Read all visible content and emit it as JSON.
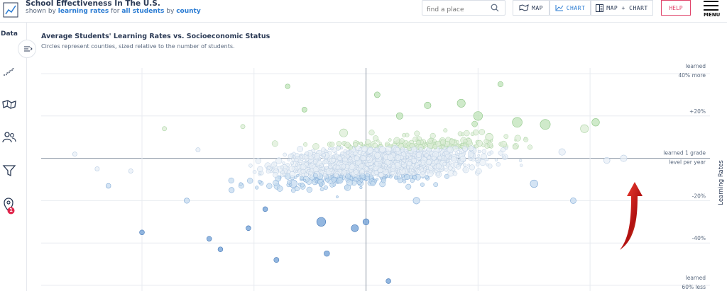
{
  "header": {
    "title": "School Effectiveness In The U.S.",
    "subtitle_prefix": "shown by",
    "subtitle_metric": "learning rates",
    "subtitle_for": "for",
    "subtitle_group": "all students",
    "subtitle_by": "by",
    "subtitle_region": "county",
    "search_placeholder": "find a place",
    "btn_map": "MAP",
    "btn_chart": "CHART",
    "btn_map_chart": "MAP + CHART",
    "btn_help": "HELP",
    "btn_menu": "MENU"
  },
  "sidebar": {
    "data_label": "Data",
    "icons": [
      "filter-steps-icon",
      "map-icon",
      "people-icon",
      "funnel-icon",
      "location-pin-icon"
    ],
    "badge_count": "1"
  },
  "colors": {
    "accent": "#2b7cd3",
    "help": "#e0446a",
    "green": "#9fd49a",
    "light": "#d4e3f2",
    "blue": "#4a86c8"
  },
  "chart_data": {
    "type": "scatter",
    "title": "Average Students' Learning Rates vs. Socioeconomic Status",
    "subtitle": "Circles represent counties, sized relative to the number of students.",
    "ylabel": "Learning Rates",
    "ylim": [
      -60,
      40
    ],
    "y_ticks": [
      {
        "value": 40,
        "label_line1": "learned",
        "label_line2": "40% more"
      },
      {
        "value": 20,
        "label_line1": "+20%",
        "label_line2": ""
      },
      {
        "value": 0,
        "label_line1": "learned 1 grade",
        "label_line2": "level per year"
      },
      {
        "value": -20,
        "label_line1": "-20%",
        "label_line2": ""
      },
      {
        "value": -40,
        "label_line1": "-40%",
        "label_line2": ""
      },
      {
        "value": -60,
        "label_line1": "learned",
        "label_line2": "60% less"
      }
    ],
    "series": [
      {
        "values_note": "sample of counties",
        "points": [
          [
            -2.6,
            2,
            1
          ],
          [
            -2.4,
            -5,
            1
          ],
          [
            -2.3,
            -13,
            1.2
          ],
          [
            -2.1,
            -6,
            1
          ],
          [
            -2.0,
            -35,
            1.2
          ],
          [
            -1.8,
            14,
            1
          ],
          [
            -1.6,
            -20,
            1.4
          ],
          [
            -1.5,
            4,
            1
          ],
          [
            -1.4,
            -38,
            1.2
          ],
          [
            -1.3,
            -43,
            1.2
          ],
          [
            -1.2,
            -15,
            1.4
          ],
          [
            -1.1,
            15,
            1
          ],
          [
            -1.05,
            -33,
            1.2
          ],
          [
            -0.9,
            -24,
            1.2
          ],
          [
            -0.8,
            -48,
            1.3
          ],
          [
            -0.7,
            34,
            1.1
          ],
          [
            -0.65,
            -12,
            2.5
          ],
          [
            -0.55,
            23,
            1.3
          ],
          [
            -0.4,
            -30,
            3
          ],
          [
            -0.35,
            -45,
            1.5
          ],
          [
            -0.25,
            -10,
            2
          ],
          [
            -0.2,
            12,
            2.6
          ],
          [
            -0.1,
            -33,
            2.2
          ],
          [
            0,
            -30,
            1.8
          ],
          [
            0.1,
            30,
            1.6
          ],
          [
            0.2,
            -58,
            1.2
          ],
          [
            0.3,
            20,
            2
          ],
          [
            0.45,
            -20,
            2
          ],
          [
            0.55,
            25,
            2
          ],
          [
            0.7,
            5,
            2.4
          ],
          [
            0.85,
            26,
            2.6
          ],
          [
            1.0,
            20,
            3
          ],
          [
            1.1,
            10,
            2.4
          ],
          [
            1.2,
            35,
            1.4
          ],
          [
            1.35,
            17,
            3.4
          ],
          [
            1.5,
            -12,
            2.4
          ],
          [
            1.6,
            16,
            3.5
          ],
          [
            1.75,
            3,
            2
          ],
          [
            1.85,
            -20,
            1.6
          ],
          [
            1.95,
            14,
            2.6
          ],
          [
            2.05,
            17,
            2.4
          ],
          [
            2.15,
            -1,
            1.8
          ],
          [
            2.3,
            0,
            2
          ]
        ]
      }
    ],
    "x_grid": [
      -2.0,
      -1.0,
      0,
      1.0,
      2.0
    ]
  }
}
